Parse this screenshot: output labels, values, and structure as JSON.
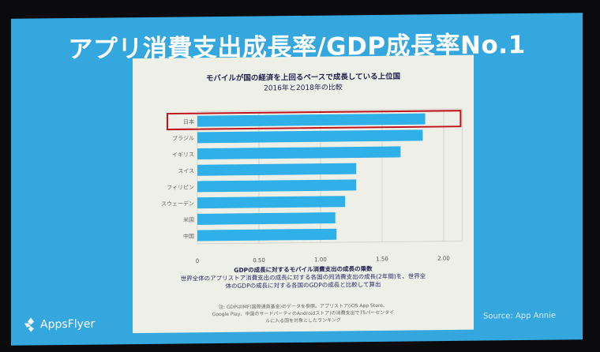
{
  "slide": {
    "title": "アプリ消費支出成長率/GDP成長率No.1",
    "logo_text": "AppsFlyer",
    "source": "Source: App Annie"
  },
  "chart_data": {
    "type": "bar",
    "orientation": "horizontal",
    "title": "モバイルが国の経済を上回るペースで成長している上位国",
    "subtitle": "2016年と2018年の比較",
    "categories": [
      "日本",
      "ブラジル",
      "イギリス",
      "スイス",
      "フィリピン",
      "スウェーデン",
      "米国",
      "中国"
    ],
    "values": [
      1.85,
      1.83,
      1.65,
      1.29,
      1.29,
      1.2,
      1.12,
      1.13
    ],
    "highlighted": "日本",
    "xlim": [
      0,
      2.15
    ],
    "xticks": [
      "0",
      "0.50",
      "1.00",
      "1.50",
      "2.00"
    ],
    "xtick_values": [
      0,
      0.5,
      1.0,
      1.5,
      2.0
    ],
    "xlabel": "GDPの成長に対するモバイル消費支出の成長の乗数",
    "description": "世界全体のアプリストア消費支出の成長に対する各国の同消費支出の成長(2年間)を、世界全体のGDPの成長に対する各国のGDPの成長と比較して算出",
    "note": "注: GDPはIMF(国際通貨基金)のデータを参照。アプリストア(iOS App Store、Google Play、中国のサードパーティのAndroidストア)の消費支出で75パーセンタイルに入る国を対象としたランキング",
    "grid": true,
    "colors": {
      "bar": "#2fb0e8",
      "highlight": "#c0141c",
      "text": "#1d1d4e"
    }
  }
}
